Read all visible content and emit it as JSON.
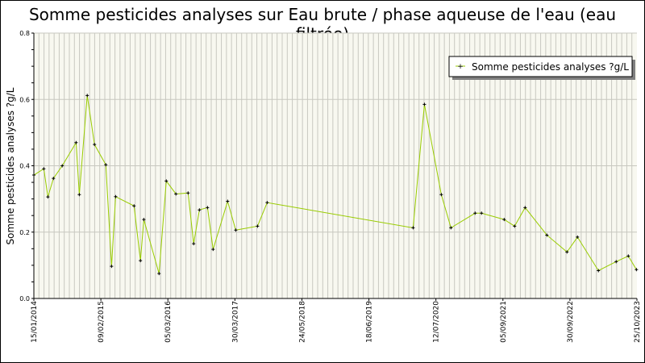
{
  "chart_data": {
    "type": "line",
    "title": "Somme pesticides analyses sur Eau brute / phase aqueuse de l'eau (eau filtrée)",
    "xlabel": "",
    "ylabel": "Somme pesticides analyses ?g/L",
    "ylim": [
      0,
      0.8
    ],
    "yticks": [
      "0.0",
      "0.2",
      "0.4",
      "0.6",
      "0.8"
    ],
    "xlim": [
      "2014-01-15",
      "2023-10-25"
    ],
    "xticks": [
      "15/01/2014",
      "09/02/2015",
      "05/03/2016",
      "30/03/2017",
      "24/05/2018",
      "18/06/2019",
      "12/07/2020",
      "05/09/2021",
      "30/09/2022",
      "25/10/2023"
    ],
    "grid": true,
    "legend_position": "top-right",
    "line_color": "#99cc00",
    "marker_color": "#000000",
    "background_color": "#f8f8f0",
    "series": [
      {
        "name": "Somme pesticides analyses ?g/L",
        "x": [
          "2014-01-15",
          "2014-03-15",
          "2014-04-08",
          "2014-05-11",
          "2014-07-02",
          "2014-09-22",
          "2014-10-11",
          "2014-11-27",
          "2015-01-09",
          "2015-03-17",
          "2015-04-20",
          "2015-05-14",
          "2015-08-31",
          "2015-10-08",
          "2015-10-28",
          "2016-01-26",
          "2016-03-09",
          "2016-05-05",
          "2016-07-16",
          "2016-08-18",
          "2016-09-21",
          "2016-11-08",
          "2016-12-11",
          "2017-03-07",
          "2017-04-24",
          "2017-08-31",
          "2017-10-27",
          "2020-03-09",
          "2020-05-15",
          "2020-08-23",
          "2020-10-19",
          "2021-03-11",
          "2021-04-18",
          "2021-08-30",
          "2021-10-31",
          "2022-01-01",
          "2022-05-10",
          "2022-09-06",
          "2022-11-07",
          "2023-03-11",
          "2023-06-24",
          "2023-09-04",
          "2023-10-22"
        ],
        "y": [
          0.372,
          0.391,
          0.306,
          0.362,
          0.4,
          0.47,
          0.313,
          0.612,
          0.464,
          0.403,
          0.097,
          0.307,
          0.279,
          0.114,
          0.238,
          0.075,
          0.354,
          0.315,
          0.318,
          0.165,
          0.267,
          0.274,
          0.148,
          0.293,
          0.206,
          0.218,
          0.289,
          0.213,
          0.585,
          0.313,
          0.213,
          0.257,
          0.257,
          0.238,
          0.218,
          0.274,
          0.191,
          0.14,
          0.185,
          0.084,
          0.111,
          0.128,
          0.087
        ]
      }
    ]
  }
}
